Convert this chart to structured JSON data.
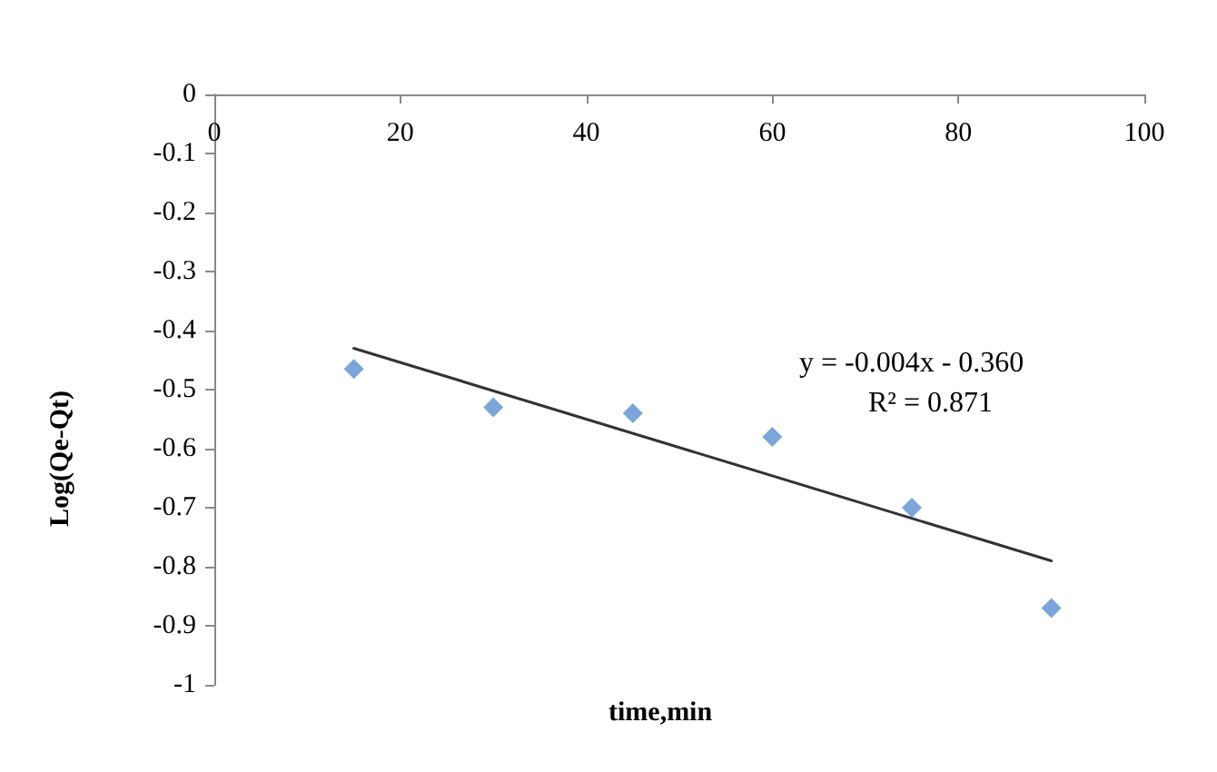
{
  "chart_data": {
    "type": "scatter",
    "xlabel": "time,min",
    "ylabel": "Log(Qe-Qt)",
    "xlim": [
      0,
      100
    ],
    "xticks": [
      0,
      20,
      40,
      60,
      80,
      100
    ],
    "ylim": [
      -1,
      0
    ],
    "yticks": [
      -1,
      -0.9,
      -0.8,
      -0.7,
      -0.6,
      -0.5,
      -0.4,
      -0.3,
      -0.2,
      -0.1,
      0
    ],
    "grid": false,
    "marker": "diamond",
    "series": [
      {
        "color": "#5b8fd0",
        "x": [
          15,
          30,
          45,
          60,
          75,
          90
        ],
        "values": [
          -0.465,
          -0.53,
          -0.54,
          -0.58,
          -0.7,
          -0.87
        ]
      },
      {
        "type": "line",
        "color": "#333333",
        "marker": "none",
        "line_style": "solid",
        "x": [
          15,
          90
        ],
        "values": [
          -0.43,
          -0.79
        ]
      }
    ],
    "annotations": [
      "y = -0.004x - 0.360",
      "R² = 0.871"
    ]
  }
}
